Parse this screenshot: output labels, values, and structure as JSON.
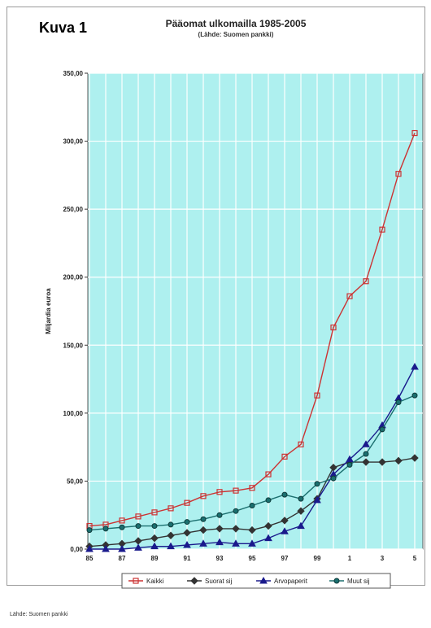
{
  "figure_label": "Kuva 1",
  "source_note": "Lähde: Suomen pankki",
  "chart_data": {
    "type": "line",
    "title": "Pääomat ulkomailla 1985-2005",
    "subtitle": "(Lähde: Suomen pankki)",
    "xlabel": "",
    "ylabel": "Miljardia euroa",
    "ylim": [
      0,
      350
    ],
    "yticks": [
      "0,00",
      "50,00",
      "100,00",
      "150,00",
      "200,00",
      "250,00",
      "300,00",
      "350,00"
    ],
    "x": [
      "85",
      "86",
      "87",
      "88",
      "89",
      "90",
      "91",
      "92",
      "93",
      "94",
      "95",
      "96",
      "97",
      "98",
      "99",
      "0",
      "1",
      "2",
      "3",
      "4",
      "5"
    ],
    "xtick_labels": [
      "85",
      "87",
      "89",
      "91",
      "93",
      "95",
      "97",
      "99",
      "1",
      "3",
      "5"
    ],
    "grid": true,
    "legend_position": "bottom",
    "plot_background": "#aef0ef",
    "series": [
      {
        "name": "Kaikki",
        "color": "#cc3333",
        "marker": "square",
        "values": [
          17,
          18,
          21,
          24,
          27,
          30,
          34,
          39,
          42,
          43,
          45,
          55,
          68,
          77,
          113,
          163,
          186,
          197,
          235,
          276,
          306
        ]
      },
      {
        "name": "Suorat sij",
        "color": "#333333",
        "marker": "diamond",
        "values": [
          2,
          3,
          4,
          6,
          8,
          10,
          12,
          14,
          15,
          15,
          14,
          17,
          21,
          28,
          37,
          60,
          64,
          64,
          64,
          65,
          67
        ]
      },
      {
        "name": "Arvopaperit",
        "color": "#1a1a8c",
        "marker": "triangle",
        "values": [
          0,
          0,
          0,
          1,
          2,
          2,
          3,
          4,
          5,
          4,
          4,
          8,
          13,
          17,
          36,
          55,
          66,
          77,
          91,
          111,
          134
        ]
      },
      {
        "name": "Muut sij",
        "color": "#1b6f6f",
        "marker": "circle",
        "values": [
          14,
          15,
          16,
          17,
          17,
          18,
          20,
          22,
          25,
          28,
          32,
          36,
          40,
          37,
          48,
          52,
          62,
          70,
          88,
          108,
          113
        ]
      }
    ]
  }
}
